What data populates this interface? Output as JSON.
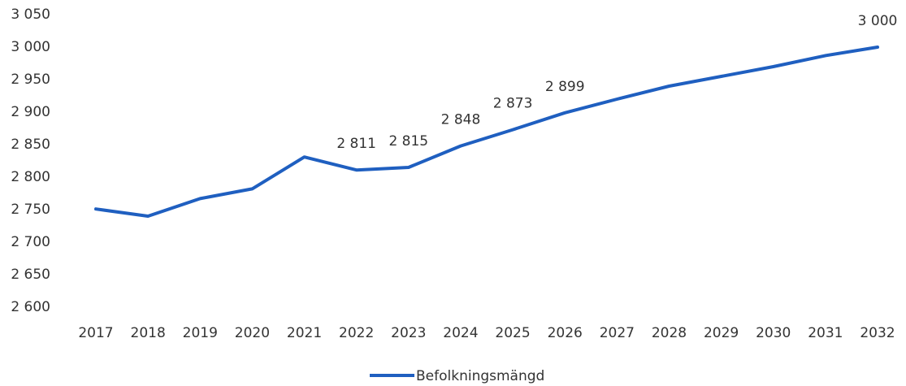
{
  "chart_data": {
    "type": "line",
    "categories": [
      "2017",
      "2018",
      "2019",
      "2020",
      "2021",
      "2022",
      "2023",
      "2024",
      "2025",
      "2026",
      "2027",
      "2028",
      "2029",
      "2030",
      "2031",
      "2032"
    ],
    "series": [
      {
        "name": "Befolkningsmängd",
        "color": "#1f5fc0",
        "values": [
          2751,
          2740,
          2767,
          2782,
          2831,
          2811,
          2815,
          2848,
          2873,
          2899,
          2920,
          2940,
          2955,
          2970,
          2987,
          3000
        ],
        "value_labels": [
          null,
          null,
          null,
          null,
          null,
          "2 811",
          "2 815",
          "2 848",
          "2 873",
          "2 899",
          null,
          null,
          null,
          null,
          null,
          "3 000"
        ]
      }
    ],
    "ylim": [
      2600,
      3050
    ],
    "yticks": [
      {
        "value": 2600,
        "label": "2 600"
      },
      {
        "value": 2650,
        "label": "2 650"
      },
      {
        "value": 2700,
        "label": "2 700"
      },
      {
        "value": 2750,
        "label": "2 750"
      },
      {
        "value": 2800,
        "label": "2 800"
      },
      {
        "value": 2850,
        "label": "2 850"
      },
      {
        "value": 2900,
        "label": "2 900"
      },
      {
        "value": 2950,
        "label": "2 950"
      },
      {
        "value": 3000,
        "label": "3 000"
      },
      {
        "value": 3050,
        "label": "3 050"
      }
    ],
    "grid": false,
    "legend": "bottom"
  }
}
